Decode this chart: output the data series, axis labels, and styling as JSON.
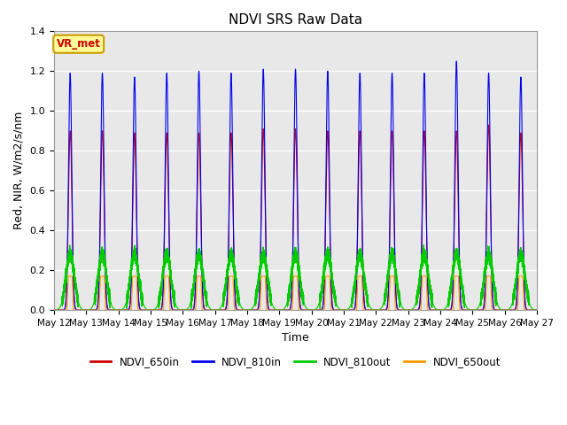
{
  "title": "NDVI SRS Raw Data",
  "xlabel": "Time",
  "ylabel": "Red, NIR, W/m2/s/nm",
  "ylim": [
    0,
    1.4
  ],
  "annotation_text": "VR_met",
  "annotation_color": "#cc0000",
  "annotation_bg": "#ffff99",
  "annotation_border": "#cc9900",
  "background_color": "#ffffff",
  "plot_bg_color": "#e8e8e8",
  "grid_color": "#ffffff",
  "series": [
    {
      "label": "NDVI_650in",
      "color": "#cc0000",
      "peak": 0.9
    },
    {
      "label": "NDVI_810in",
      "color": "#0000ee",
      "peak": 1.2
    },
    {
      "label": "NDVI_810out",
      "color": "#00cc00",
      "peak": 0.29
    },
    {
      "label": "NDVI_650out",
      "color": "#ff9900",
      "peak": 0.17
    }
  ],
  "tick_labels": [
    "May 12",
    "May 13",
    "May 14",
    "May 15",
    "May 16",
    "May 17",
    "May 18",
    "May 19",
    "May 20",
    "May 21",
    "May 22",
    "May 23",
    "May 24",
    "May 25",
    "May 26",
    "May 27"
  ],
  "legend_labels": [
    "NDVI_650in",
    "NDVI_810in",
    "NDVI_810out",
    "NDVI_650out"
  ],
  "legend_colors": [
    "#cc0000",
    "#0000ee",
    "#00cc00",
    "#ff9900"
  ]
}
